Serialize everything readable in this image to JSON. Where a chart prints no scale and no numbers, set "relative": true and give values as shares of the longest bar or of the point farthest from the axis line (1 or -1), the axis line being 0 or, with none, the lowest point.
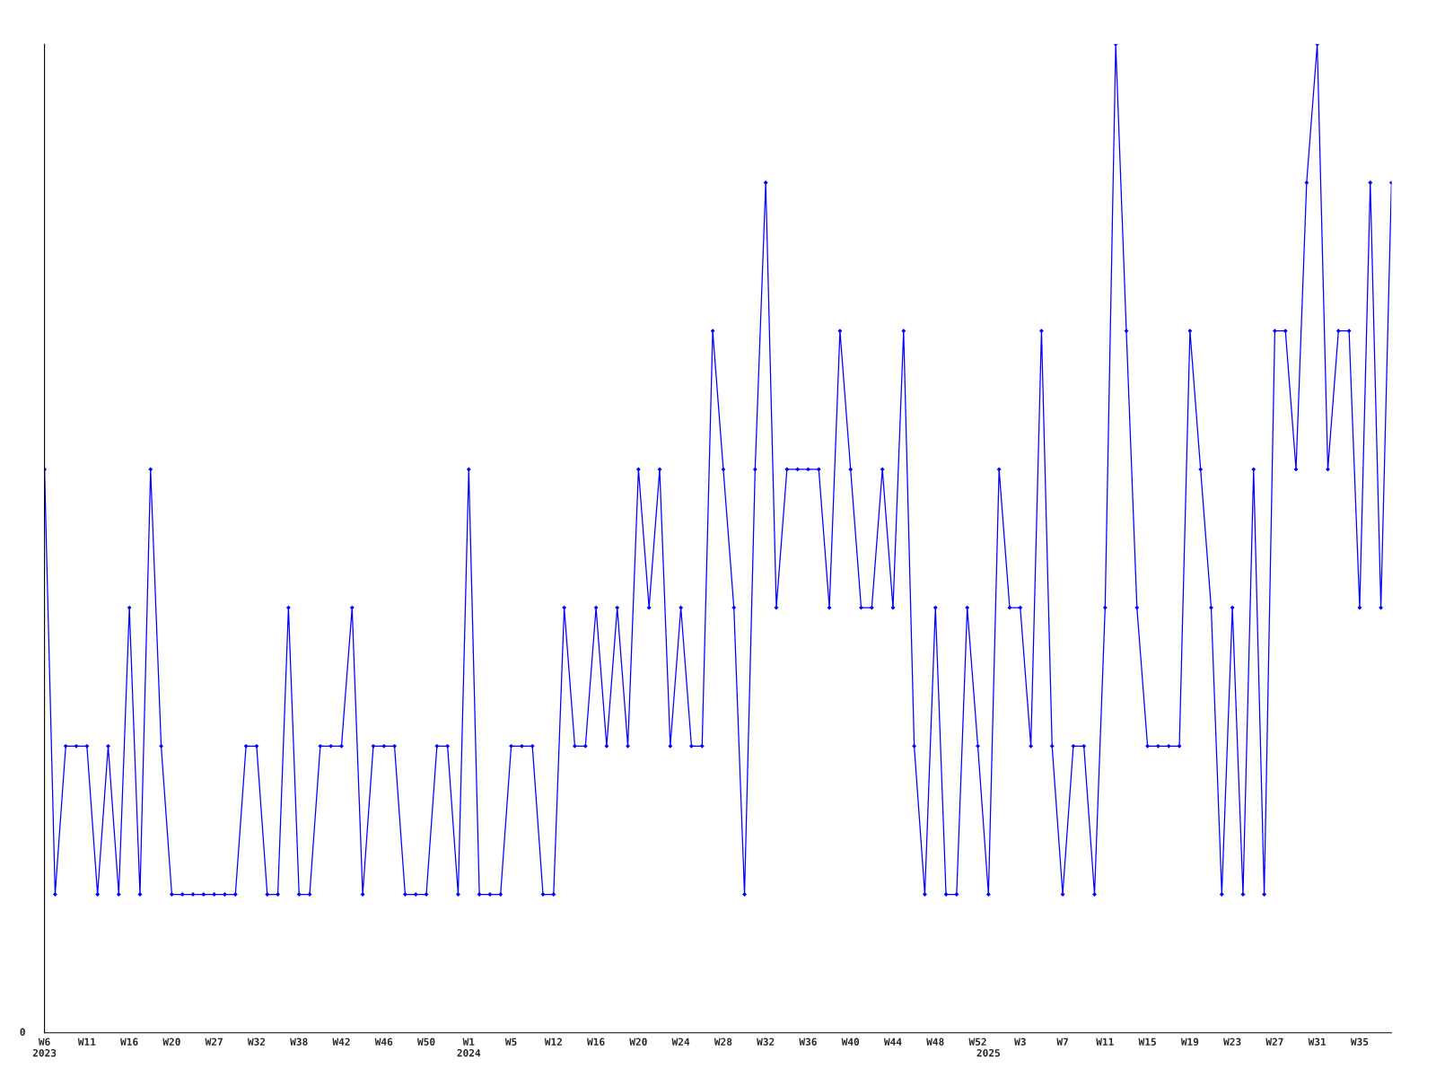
{
  "chart_data": {
    "type": "line",
    "relative": true,
    "marker": "diamond",
    "line_style": "solid",
    "grid": false,
    "legend": false,
    "tick_labels": "x",
    "categories": [
      "W6\n2023",
      null,
      null,
      null,
      "W11",
      null,
      null,
      null,
      "W16",
      null,
      null,
      null,
      "W20",
      null,
      null,
      null,
      "W27",
      null,
      null,
      null,
      "W32",
      null,
      null,
      null,
      "W38",
      null,
      null,
      null,
      "W42",
      null,
      null,
      null,
      "W46",
      null,
      null,
      null,
      "W50",
      null,
      null,
      null,
      "W1\n2024",
      null,
      null,
      null,
      "W5",
      null,
      null,
      null,
      "W12",
      null,
      null,
      null,
      "W16",
      null,
      null,
      null,
      "W20",
      null,
      null,
      null,
      "W24",
      null,
      null,
      null,
      "W28",
      null,
      null,
      null,
      "W32",
      null,
      null,
      null,
      "W36",
      null,
      null,
      null,
      "W40",
      null,
      null,
      null,
      "W44",
      null,
      null,
      null,
      "W48",
      null,
      null,
      null,
      "W52",
      "\n2025",
      null,
      null,
      "W3",
      null,
      null,
      null,
      "W7",
      null,
      null,
      null,
      "W11",
      null,
      null,
      null,
      "W15",
      null,
      null,
      null,
      "W19",
      null,
      null,
      null,
      "W23",
      null,
      null,
      null,
      "W27",
      null,
      null,
      null,
      "W31",
      null,
      null,
      null,
      "W35",
      null,
      null,
      null
    ],
    "series": [
      {
        "color": "#0000ff",
        "values": [
          0.57,
          0.14,
          0.29,
          0.29,
          0.29,
          0.14,
          0.29,
          0.14,
          0.43,
          0.14,
          0.57,
          0.29,
          0.14,
          0.14,
          0.14,
          0.14,
          0.14,
          0.14,
          0.14,
          0.29,
          0.29,
          0.14,
          0.14,
          0.43,
          0.14,
          0.14,
          0.29,
          0.29,
          0.29,
          0.43,
          0.14,
          0.29,
          0.29,
          0.29,
          0.14,
          0.14,
          0.14,
          0.29,
          0.29,
          0.14,
          0.57,
          0.14,
          0.14,
          0.14,
          0.29,
          0.29,
          0.29,
          0.14,
          0.14,
          0.43,
          0.29,
          0.29,
          0.43,
          0.29,
          0.43,
          0.29,
          0.57,
          0.43,
          0.57,
          0.29,
          0.43,
          0.29,
          0.29,
          0.71,
          0.57,
          0.43,
          0.14,
          0.57,
          0.86,
          0.43,
          0.57,
          0.57,
          0.57,
          0.57,
          0.43,
          0.71,
          0.57,
          0.43,
          0.43,
          0.57,
          0.43,
          0.71,
          0.29,
          0.14,
          0.43,
          0.14,
          0.14,
          0.43,
          0.29,
          0.14,
          0.57,
          0.43,
          0.43,
          0.29,
          0.71,
          0.29,
          0.14,
          0.29,
          0.29,
          0.14,
          0.43,
          1,
          0.71,
          0.43,
          0.29,
          0.29,
          0.29,
          0.29,
          0.71,
          0.57,
          0.43,
          0.14,
          0.43,
          0.14,
          0.57,
          0.14,
          0.71,
          0.71,
          0.57,
          0.86,
          1,
          0.57,
          0.71,
          0.71,
          0.43,
          0.86,
          0.43,
          0.86
        ]
      }
    ],
    "annotations": [
      "0"
    ]
  }
}
